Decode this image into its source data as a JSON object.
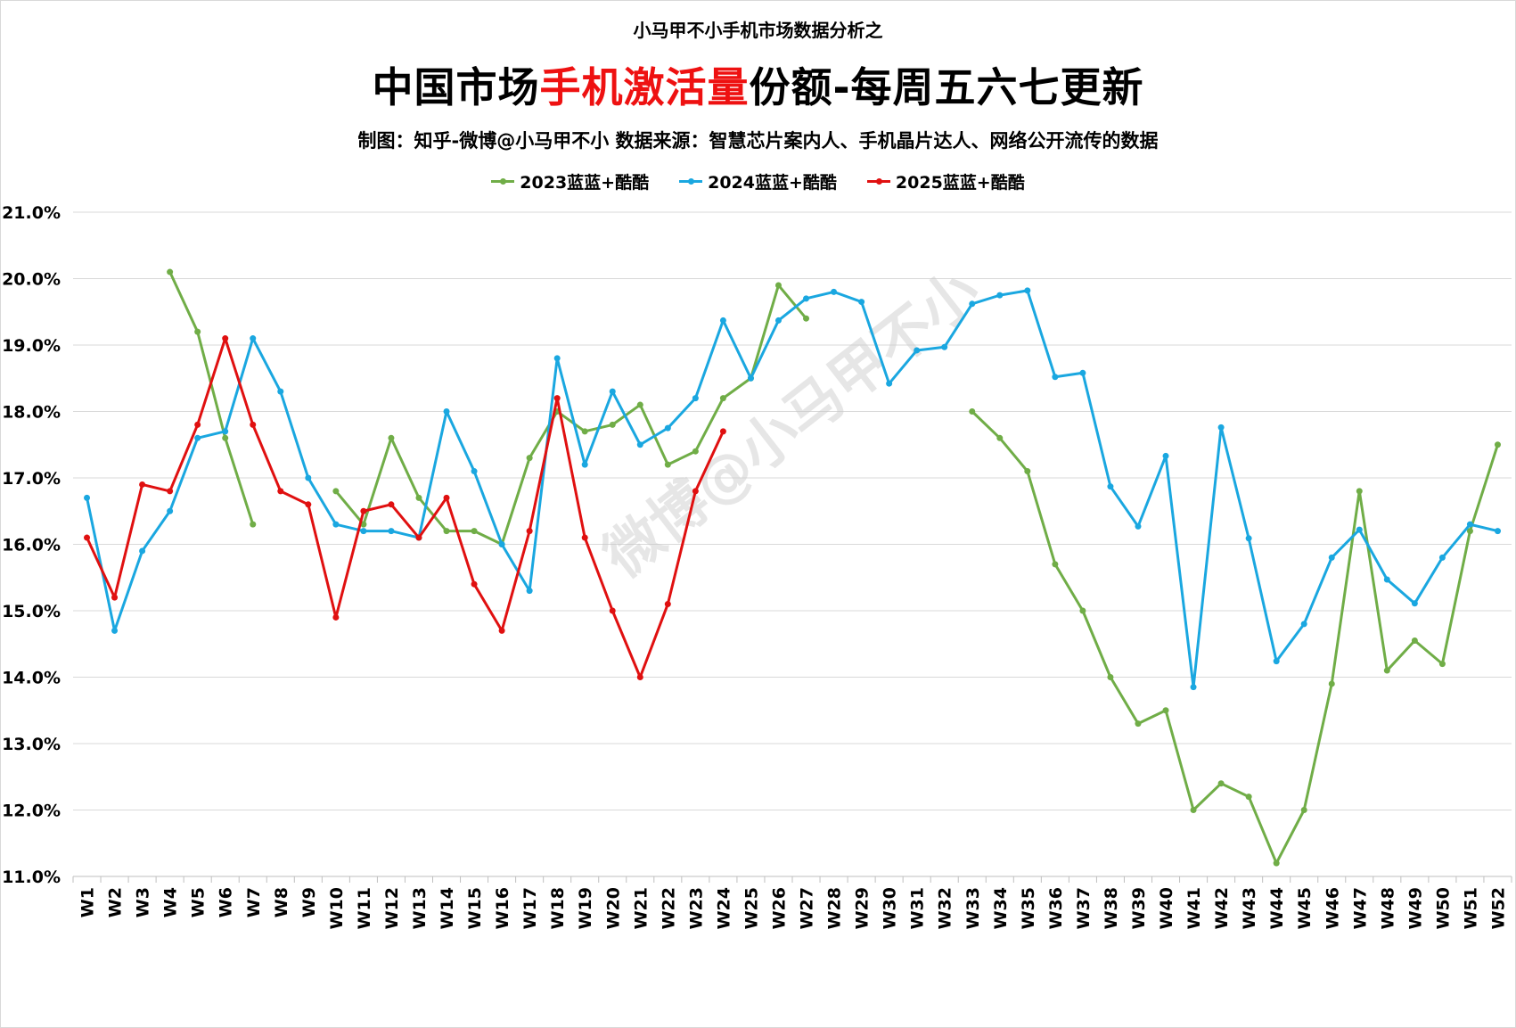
{
  "header": {
    "supertitle": "小马甲不小手机市场数据分析之",
    "title_part1": "中国市场",
    "title_highlight": "手机激活量",
    "title_part2": "份额-每周五六七更新",
    "subtitle": "制图：知乎-微博@小马甲不小   数据来源：智慧芯片案内人、手机晶片达人、网络公开流传的数据"
  },
  "watermark": "微博@小马甲不小",
  "colors": {
    "title_highlight": "#ee1111",
    "grid": "#d9d9d9"
  },
  "chart_data": {
    "type": "line",
    "title": "中国市场手机激活量份额-每周五六七更新",
    "xlabel": "",
    "ylabel": "",
    "ylim": [
      11.0,
      21.0
    ],
    "yticks": [
      "11.0%",
      "12.0%",
      "13.0%",
      "14.0%",
      "15.0%",
      "16.0%",
      "17.0%",
      "18.0%",
      "19.0%",
      "20.0%",
      "21.0%"
    ],
    "grid": "horizontal",
    "legend_position": "top-center",
    "categories": [
      "W1",
      "W2",
      "W3",
      "W4",
      "W5",
      "W6",
      "W7",
      "W8",
      "W9",
      "W10",
      "W11",
      "W12",
      "W13",
      "W14",
      "W15",
      "W16",
      "W17",
      "W18",
      "W19",
      "W20",
      "W21",
      "W22",
      "W23",
      "W24",
      "W25",
      "W26",
      "W27",
      "W28",
      "W29",
      "W30",
      "W31",
      "W32",
      "W33",
      "W34",
      "W35",
      "W36",
      "W37",
      "W38",
      "W39",
      "W40",
      "W41",
      "W42",
      "W43",
      "W44",
      "W45",
      "W46",
      "W47",
      "W48",
      "W49",
      "W50",
      "W51",
      "W52"
    ],
    "series": [
      {
        "name": "2023蓝蓝+酷酷",
        "color": "#70ad47",
        "values": [
          null,
          null,
          null,
          20.1,
          19.2,
          17.6,
          16.3,
          null,
          null,
          16.8,
          16.3,
          17.6,
          16.7,
          16.2,
          16.2,
          16.0,
          17.3,
          18.0,
          17.7,
          17.8,
          18.1,
          17.2,
          17.4,
          18.2,
          18.5,
          19.9,
          19.4,
          null,
          null,
          null,
          null,
          null,
          18.0,
          17.6,
          17.1,
          15.7,
          15.0,
          14.0,
          13.3,
          13.5,
          12.0,
          12.4,
          12.2,
          11.2,
          12.0,
          13.9,
          16.8,
          14.1,
          14.55,
          14.2,
          16.2,
          17.5
        ]
      },
      {
        "name": "2024蓝蓝+酷酷",
        "color": "#1aa7e0",
        "values": [
          16.7,
          14.7,
          15.9,
          16.5,
          17.6,
          17.7,
          19.1,
          18.3,
          17.0,
          16.3,
          16.2,
          16.2,
          16.1,
          18.0,
          17.1,
          16.0,
          15.3,
          18.8,
          17.2,
          18.3,
          17.5,
          17.75,
          18.2,
          19.37,
          18.5,
          19.37,
          19.7,
          19.8,
          19.65,
          18.42,
          18.92,
          18.97,
          19.62,
          19.75,
          19.82,
          18.52,
          18.58,
          16.87,
          16.27,
          17.33,
          13.85,
          17.76,
          16.09,
          14.24,
          14.8,
          15.8,
          16.22,
          15.47,
          15.11,
          15.8,
          16.3,
          16.2
        ]
      },
      {
        "name": "2025蓝蓝+酷酷",
        "color": "#e01010",
        "values": [
          16.1,
          15.2,
          16.9,
          16.8,
          17.8,
          19.1,
          17.8,
          16.8,
          16.6,
          14.9,
          16.5,
          16.6,
          16.1,
          16.7,
          15.4,
          14.7,
          16.2,
          18.2,
          16.1,
          15.0,
          14.0,
          15.1,
          16.8,
          17.7,
          null,
          null,
          null,
          null,
          null,
          null,
          null,
          null,
          null,
          null,
          null,
          null,
          null,
          null,
          null,
          null,
          null,
          null,
          null,
          null,
          null,
          null,
          null,
          null,
          null,
          null,
          null,
          null
        ]
      }
    ]
  }
}
